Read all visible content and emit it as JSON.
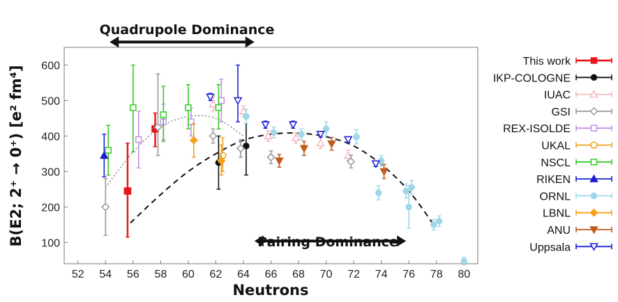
{
  "chart_data": {
    "type": "scatter",
    "xlabel": "Neutrons",
    "ylabel": "B(E2; 2⁺ → 0⁺) [e² fm⁴]",
    "xlim": [
      51,
      81
    ],
    "ylim": [
      40,
      650
    ],
    "xticks": [
      52,
      54,
      56,
      58,
      60,
      62,
      64,
      66,
      68,
      70,
      72,
      74,
      76,
      78,
      80
    ],
    "yticks": [
      100,
      200,
      300,
      400,
      500,
      600
    ],
    "annotations": [
      {
        "text": "Quadrupole Dominance",
        "arrow_from": 54.3,
        "arrow_to": 64.8,
        "arrow_y": 665
      },
      {
        "text": "Pairing Dominance",
        "arrow_from": 64.8,
        "arrow_to": 75.8,
        "arrow_y": 104
      }
    ],
    "trend_curves": [
      {
        "style": "gray-dotted",
        "points": [
          [
            54,
            255
          ],
          [
            56,
            355
          ],
          [
            58,
            425
          ],
          [
            60,
            455
          ],
          [
            62,
            450
          ],
          [
            64,
            400
          ]
        ]
      },
      {
        "style": "black-dashed",
        "points": [
          [
            55.8,
            155
          ],
          [
            58,
            235
          ],
          [
            60,
            300
          ],
          [
            62,
            350
          ],
          [
            64,
            388
          ],
          [
            66,
            405
          ],
          [
            68,
            408
          ],
          [
            70,
            398
          ],
          [
            72,
            372
          ],
          [
            74,
            320
          ],
          [
            76,
            245
          ],
          [
            77.8,
            150
          ]
        ]
      }
    ],
    "series": [
      {
        "name": "This work",
        "color": "#e8151b",
        "marker": "square-filled",
        "points": [
          {
            "x": 55.6,
            "y": 245,
            "lo": 115,
            "hi": 380
          },
          {
            "x": 57.6,
            "y": 420,
            "lo": 370,
            "hi": 465
          }
        ]
      },
      {
        "name": "IKP-COLOGNE",
        "color": "#111111",
        "marker": "circle-filled",
        "points": [
          {
            "x": 62.2,
            "y": 325,
            "lo": 250,
            "hi": 400
          },
          {
            "x": 64.2,
            "y": 372,
            "lo": 290,
            "hi": 435
          }
        ]
      },
      {
        "name": "IUAC",
        "color": "#f3b8bf",
        "marker": "triangle-open",
        "points": [
          {
            "x": 61.8,
            "y": 490,
            "lo": 470,
            "hi": 510
          },
          {
            "x": 64,
            "y": 470,
            "lo": 455,
            "hi": 485
          },
          {
            "x": 65.8,
            "y": 400,
            "lo": 385,
            "hi": 415
          },
          {
            "x": 67.8,
            "y": 395,
            "lo": 380,
            "hi": 410
          },
          {
            "x": 69.6,
            "y": 380,
            "lo": 365,
            "hi": 395
          },
          {
            "x": 71.6,
            "y": 345,
            "lo": 330,
            "hi": 360
          }
        ]
      },
      {
        "name": "GSI",
        "color": "#999999",
        "marker": "diamond-open",
        "points": [
          {
            "x": 54,
            "y": 200,
            "lo": 120,
            "hi": 280
          },
          {
            "x": 57.8,
            "y": 425,
            "lo": 345,
            "hi": 575
          },
          {
            "x": 61.8,
            "y": 400,
            "lo": 380,
            "hi": 420
          },
          {
            "x": 63.8,
            "y": 365,
            "lo": 340,
            "hi": 390
          },
          {
            "x": 66,
            "y": 340,
            "lo": 322,
            "hi": 358
          },
          {
            "x": 71.8,
            "y": 328,
            "lo": 310,
            "hi": 346
          }
        ]
      },
      {
        "name": "REX-ISOLDE",
        "color": "#c48fe8",
        "marker": "square-open",
        "points": [
          {
            "x": 56.4,
            "y": 390,
            "lo": 310,
            "hi": 470
          },
          {
            "x": 58.2,
            "y": 440,
            "lo": 390,
            "hi": 490
          },
          {
            "x": 60.2,
            "y": 440,
            "lo": 400,
            "hi": 480
          },
          {
            "x": 62.4,
            "y": 500,
            "lo": 440,
            "hi": 560
          }
        ]
      },
      {
        "name": "UKAL",
        "color": "#f1a21b",
        "marker": "pentagon-open",
        "points": [
          {
            "x": 62.5,
            "y": 345,
            "lo": 300,
            "hi": 395
          }
        ]
      },
      {
        "name": "NSCL",
        "color": "#33cc22",
        "marker": "square-open",
        "points": [
          {
            "x": 54.2,
            "y": 360,
            "lo": 290,
            "hi": 430
          },
          {
            "x": 56,
            "y": 480,
            "lo": 355,
            "hi": 600
          },
          {
            "x": 58.2,
            "y": 460,
            "lo": 385,
            "hi": 540
          },
          {
            "x": 60,
            "y": 480,
            "lo": 420,
            "hi": 545
          },
          {
            "x": 62.2,
            "y": 480,
            "lo": 420,
            "hi": 545
          }
        ]
      },
      {
        "name": "RIKEN",
        "color": "#1a1ed1",
        "marker": "triangle-filled",
        "points": [
          {
            "x": 53.9,
            "y": 345,
            "lo": 285,
            "hi": 405
          }
        ]
      },
      {
        "name": "ORNL",
        "color": "#9fd6e8",
        "marker": "circle-filled",
        "points": [
          {
            "x": 64.2,
            "y": 455,
            "lo": 435,
            "hi": 475
          },
          {
            "x": 66.2,
            "y": 410,
            "lo": 395,
            "hi": 425
          },
          {
            "x": 68.2,
            "y": 405,
            "lo": 390,
            "hi": 420
          },
          {
            "x": 70,
            "y": 420,
            "lo": 400,
            "hi": 440
          },
          {
            "x": 72.2,
            "y": 398,
            "lo": 378,
            "hi": 418
          },
          {
            "x": 73.8,
            "y": 240,
            "lo": 220,
            "hi": 260
          },
          {
            "x": 74,
            "y": 330,
            "lo": 315,
            "hi": 345
          },
          {
            "x": 75.8,
            "y": 245,
            "lo": 225,
            "hi": 265
          },
          {
            "x": 76,
            "y": 200,
            "lo": 140,
            "hi": 260
          },
          {
            "x": 76.2,
            "y": 255,
            "lo": 235,
            "hi": 275
          },
          {
            "x": 77.8,
            "y": 150,
            "lo": 135,
            "hi": 165
          },
          {
            "x": 78.2,
            "y": 160,
            "lo": 145,
            "hi": 175
          },
          {
            "x": 80,
            "y": 47,
            "lo": 37,
            "hi": 57
          }
        ]
      },
      {
        "name": "LBNL",
        "color": "#f4a21b",
        "marker": "diamond-filled",
        "points": [
          {
            "x": 60.4,
            "y": 388,
            "lo": 340,
            "hi": 435
          },
          {
            "x": 62.4,
            "y": 330,
            "lo": 290,
            "hi": 375
          }
        ]
      },
      {
        "name": "ANU",
        "color": "#c05a1c",
        "marker": "triangle-down-filled",
        "points": [
          {
            "x": 66.6,
            "y": 330,
            "lo": 312,
            "hi": 348
          },
          {
            "x": 68.4,
            "y": 365,
            "lo": 345,
            "hi": 385
          },
          {
            "x": 70.4,
            "y": 378,
            "lo": 360,
            "hi": 396
          },
          {
            "x": 74.2,
            "y": 300,
            "lo": 280,
            "hi": 320
          }
        ]
      },
      {
        "name": "Uppsala",
        "color": "#1a1ed1",
        "marker": "triangle-down-open",
        "points": [
          {
            "x": 61.6,
            "y": 510,
            "lo": 500,
            "hi": 520
          },
          {
            "x": 63.6,
            "y": 500,
            "lo": 440,
            "hi": 600
          },
          {
            "x": 65.6,
            "y": 432,
            "lo": 422,
            "hi": 442
          },
          {
            "x": 67.6,
            "y": 432,
            "lo": 422,
            "hi": 442
          },
          {
            "x": 69.6,
            "y": 405,
            "lo": 397,
            "hi": 413
          },
          {
            "x": 71.6,
            "y": 390,
            "lo": 382,
            "hi": 398
          },
          {
            "x": 73.6,
            "y": 322,
            "lo": 314,
            "hi": 330
          }
        ]
      }
    ]
  }
}
